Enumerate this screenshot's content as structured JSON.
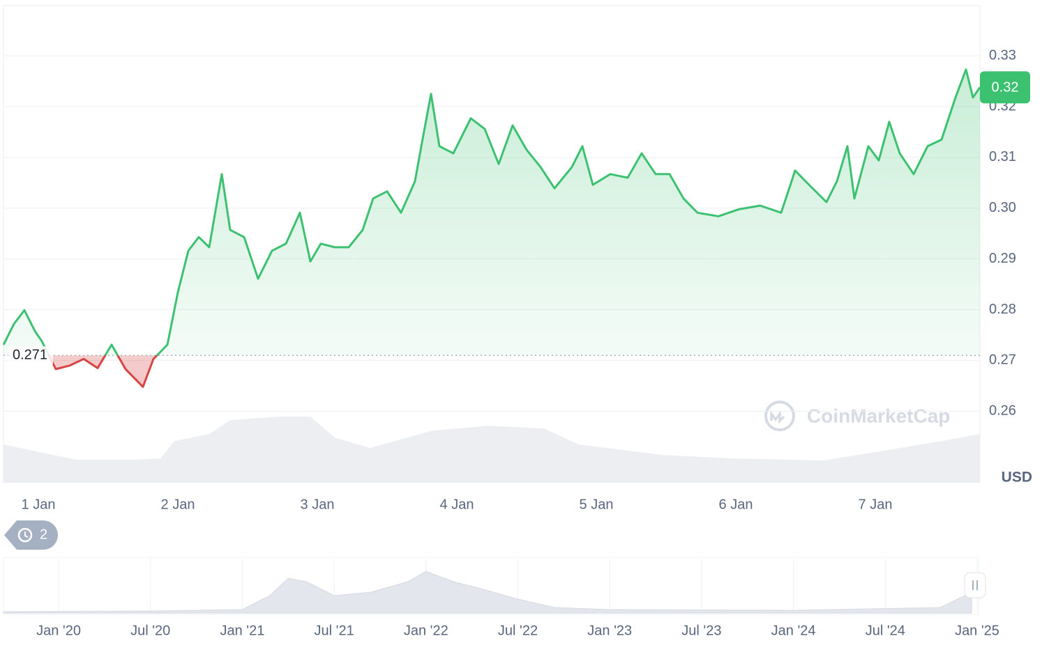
{
  "chart_data": {
    "type": "line",
    "currency": "USD",
    "watermark": "CoinMarketCap",
    "baseline": {
      "value": 0.271,
      "label": "0.271"
    },
    "current_price": {
      "value": 0.3238,
      "label": "0.32"
    },
    "history_count": 2,
    "colors": {
      "up": "#3cc170",
      "down": "#d94545",
      "volume": "#eceef2",
      "badge": "#3cc170"
    },
    "xlim": [
      0.75,
      7.75
    ],
    "xticks": [
      {
        "value": 1,
        "label": "1 Jan"
      },
      {
        "value": 2,
        "label": "2 Jan"
      },
      {
        "value": 3,
        "label": "3 Jan"
      },
      {
        "value": 4,
        "label": "4 Jan"
      },
      {
        "value": 5,
        "label": "5 Jan"
      },
      {
        "value": 6,
        "label": "6 Jan"
      },
      {
        "value": 7,
        "label": "7 Jan"
      }
    ],
    "ylim": [
      0.2459,
      0.3399
    ],
    "yticks": [
      {
        "value": 0.26,
        "label": "0.26"
      },
      {
        "value": 0.27,
        "label": "0.27"
      },
      {
        "value": 0.28,
        "label": "0.28"
      },
      {
        "value": 0.29,
        "label": "0.29"
      },
      {
        "value": 0.3,
        "label": "0.30"
      },
      {
        "value": 0.31,
        "label": "0.31"
      },
      {
        "value": 0.32,
        "label": "0.32"
      },
      {
        "value": 0.33,
        "label": "0.33"
      }
    ],
    "grid": true,
    "series": [
      {
        "x": [
          0.75,
          0.825,
          0.9,
          0.975,
          1.025,
          1.125,
          1.225,
          1.325,
          1.425,
          1.525,
          1.625,
          1.75,
          1.825,
          1.925,
          2.0,
          2.075,
          2.15,
          2.225,
          2.315,
          2.375,
          2.475,
          2.575,
          2.675,
          2.775,
          2.875,
          2.95,
          3.025,
          3.125,
          3.225,
          3.325,
          3.4,
          3.5,
          3.6,
          3.7,
          3.75,
          3.815,
          3.875,
          3.975,
          4.1,
          4.2,
          4.3,
          4.4,
          4.5,
          4.6,
          4.7,
          4.825,
          4.9,
          4.975,
          5.1,
          5.225,
          5.325,
          5.425,
          5.525,
          5.625,
          5.725,
          5.875,
          6.025,
          6.175,
          6.325,
          6.425,
          6.525,
          6.65,
          6.725,
          6.8,
          6.85,
          6.95,
          7.025,
          7.1,
          7.175,
          7.275,
          7.375,
          7.475,
          7.575,
          7.65,
          7.7,
          7.75
        ],
        "values": [
          0.2731,
          0.2772,
          0.2799,
          0.2758,
          0.2738,
          0.2683,
          0.269,
          0.2703,
          0.2685,
          0.2731,
          0.2683,
          0.2648,
          0.2703,
          0.2731,
          0.2834,
          0.2916,
          0.2943,
          0.2923,
          0.3067,
          0.2957,
          0.2943,
          0.2861,
          0.2916,
          0.293,
          0.2991,
          0.2895,
          0.293,
          0.2923,
          0.2923,
          0.2957,
          0.3019,
          0.3033,
          0.2991,
          0.3053,
          0.3129,
          0.3225,
          0.3122,
          0.3108,
          0.3177,
          0.3156,
          0.3087,
          0.3163,
          0.3115,
          0.3081,
          0.3039,
          0.3081,
          0.3122,
          0.3046,
          0.3067,
          0.306,
          0.3108,
          0.3067,
          0.3067,
          0.3019,
          0.2991,
          0.2984,
          0.2998,
          0.3005,
          0.2991,
          0.3074,
          0.3046,
          0.3012,
          0.3053,
          0.3122,
          0.3019,
          0.3122,
          0.3094,
          0.317,
          0.3108,
          0.3067,
          0.3122,
          0.3135,
          0.3218,
          0.3273,
          0.3218,
          0.3238
        ]
      }
    ],
    "volume": {
      "x": [
        0.75,
        1.875,
        1.275,
        1.675,
        1.975,
        2.225,
        2.375,
        2.725,
        2.95,
        3.125,
        3.375,
        3.825,
        4.225,
        4.625,
        4.875,
        5.475,
        5.975,
        6.625,
        7.025,
        7.475,
        7.75
      ],
      "values": [
        55,
        35,
        33,
        33,
        60,
        70,
        90,
        95,
        95,
        65,
        50,
        75,
        82,
        78,
        55,
        40,
        35,
        32,
        45,
        60,
        70
      ]
    },
    "navigator": {
      "xlim": [
        2019.7,
        2025.0
      ],
      "xticks": [
        {
          "value": 2020,
          "label": "Jan '20"
        },
        {
          "value": 2020.5,
          "label": "Jul '20"
        },
        {
          "value": 2021,
          "label": "Jan '21"
        },
        {
          "value": 2021.5,
          "label": "Jul '21"
        },
        {
          "value": 2022,
          "label": "Jan '22"
        },
        {
          "value": 2022.5,
          "label": "Jul '22"
        },
        {
          "value": 2023,
          "label": "Jan '23"
        },
        {
          "value": 2023.5,
          "label": "Jul '23"
        },
        {
          "value": 2024,
          "label": "Jan '24"
        },
        {
          "value": 2024.5,
          "label": "Jul '24"
        },
        {
          "value": 2025,
          "label": "Jan '25"
        }
      ],
      "x": [
        2019.7,
        2020.5,
        2021.0,
        2021.15,
        2021.25,
        2021.35,
        2021.5,
        2021.7,
        2021.9,
        2022.0,
        2022.15,
        2022.3,
        2022.5,
        2022.7,
        2023.0,
        2024.0,
        2024.8,
        2024.97
      ],
      "values": [
        2,
        3,
        5,
        25,
        50,
        45,
        25,
        30,
        45,
        60,
        45,
        35,
        20,
        8,
        5,
        4,
        8,
        30
      ]
    }
  }
}
